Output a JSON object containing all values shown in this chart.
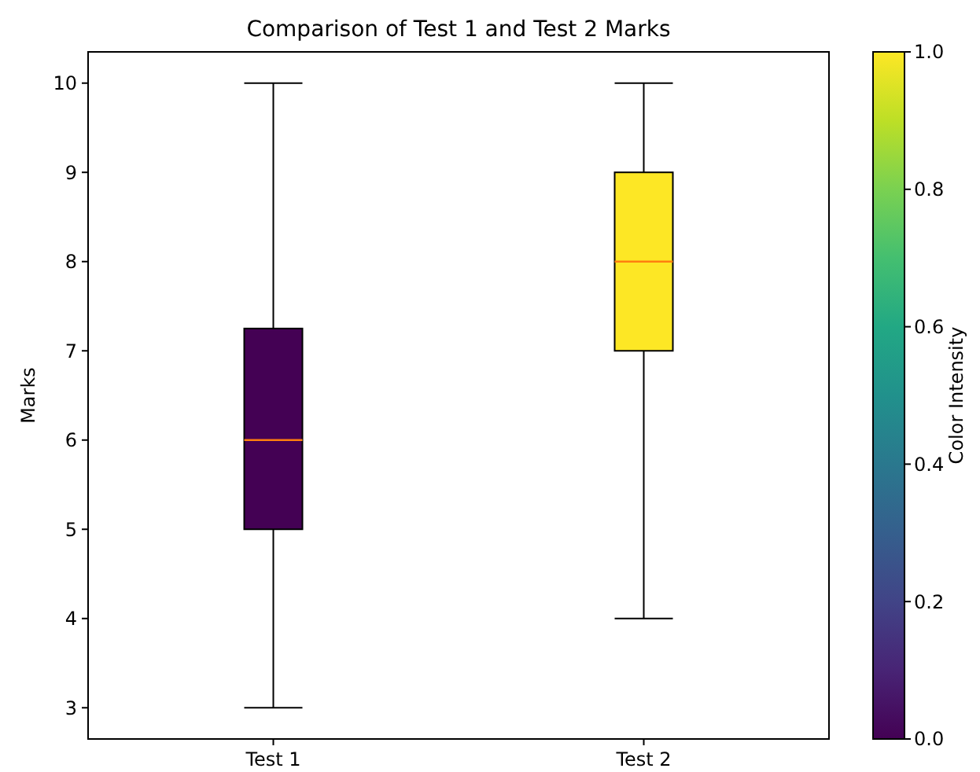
{
  "chart_data": {
    "type": "box",
    "title": "Comparison of Test 1 and Test 2 Marks",
    "ylabel": "Marks",
    "categories": [
      "Test 1",
      "Test 2"
    ],
    "boxes": [
      {
        "low": 3,
        "q1": 5,
        "median": 6,
        "q3": 7.25,
        "high": 10
      },
      {
        "low": 4,
        "q1": 7,
        "median": 8,
        "q3": 9,
        "high": 10
      }
    ],
    "colors": [
      "#440154",
      "#fde725"
    ],
    "ylim": [
      2.65,
      10.35
    ],
    "yticks": [
      3,
      4,
      5,
      6,
      7,
      8,
      9,
      10
    ],
    "clabel": "Color Intensity",
    "clim": [
      0,
      1
    ],
    "cticks": [
      {
        "value": 0,
        "label": "0.0"
      },
      {
        "value": 0.2,
        "label": "0.2"
      },
      {
        "value": 0.4,
        "label": "0.4"
      },
      {
        "value": 0.6,
        "label": "0.6"
      },
      {
        "value": 0.8,
        "label": "0.8"
      },
      {
        "value": 1,
        "label": "1.0"
      }
    ],
    "grid": false
  }
}
